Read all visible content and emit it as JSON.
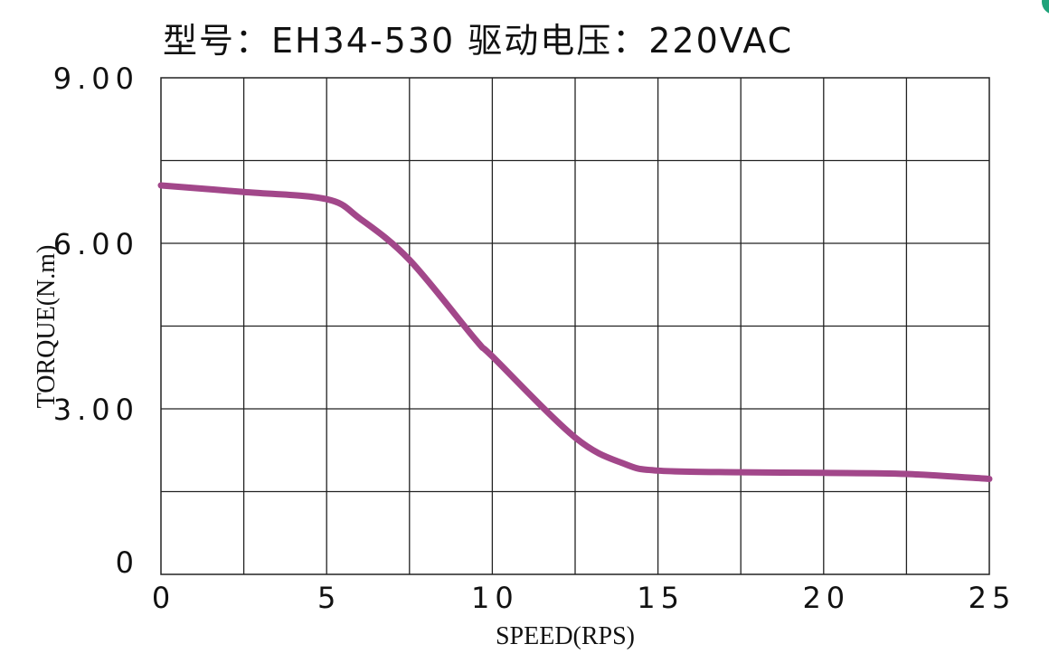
{
  "title": "型号：EH34-530   驱动电压：220VAC",
  "chart_data": {
    "type": "line",
    "title": "型号：EH34-530   驱动电压：220VAC",
    "xlabel": "SPEED(RPS)",
    "ylabel": "TORQUE(N.m)",
    "xlim": [
      0,
      25
    ],
    "ylim": [
      0,
      9
    ],
    "grid": true,
    "x_ticks": [
      0,
      5,
      10,
      15,
      20,
      25
    ],
    "x_tick_labels": [
      "0",
      "5",
      "10",
      "15",
      "20",
      "25"
    ],
    "y_ticks": [
      0,
      3,
      6,
      9
    ],
    "y_tick_labels": [
      "0",
      "3.00",
      "6.00",
      "9.00"
    ],
    "x_grid_step": 2.5,
    "y_grid_step": 1.5,
    "series": [
      {
        "color": "#a2478a",
        "x": [
          0,
          2.5,
          5,
          6,
          7.5,
          9.5,
          10,
          12.5,
          14,
          15,
          17.5,
          20,
          22.5,
          25
        ],
        "y": [
          7.05,
          6.93,
          6.8,
          6.45,
          5.7,
          4.25,
          3.95,
          2.48,
          2.0,
          1.88,
          1.85,
          1.84,
          1.82,
          1.73
        ]
      }
    ]
  }
}
